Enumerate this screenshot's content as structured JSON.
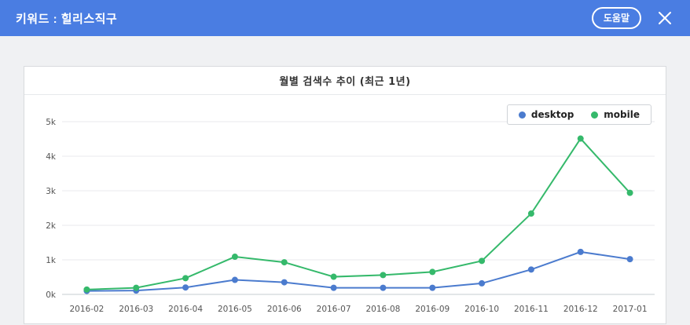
{
  "header": {
    "title": "키워드 : 힐리스직구",
    "help_label": "도움말"
  },
  "colors": {
    "header_background": "#4a7de2",
    "desktop_series": "#4b7bce",
    "mobile_series": "#35b96b"
  },
  "chart_data": {
    "type": "line",
    "title": "월별 검색수 추이 (최근 1년)",
    "categories": [
      "2016-02",
      "2016-03",
      "2016-04",
      "2016-05",
      "2016-06",
      "2016-07",
      "2016-08",
      "2016-09",
      "2016-10",
      "2016-11",
      "2016-12",
      "2017-01"
    ],
    "series": [
      {
        "name": "desktop",
        "color": "#4b7bce",
        "values": [
          100,
          110,
          200,
          420,
          350,
          190,
          190,
          190,
          320,
          720,
          1230,
          1020
        ]
      },
      {
        "name": "mobile",
        "color": "#35b96b",
        "values": [
          140,
          190,
          470,
          1090,
          930,
          510,
          560,
          650,
          970,
          2340,
          4510,
          2940
        ]
      }
    ],
    "ylim": [
      0,
      5000
    ],
    "yticks": [
      "0k",
      "1k",
      "2k",
      "3k",
      "4k",
      "5k"
    ],
    "grid": true,
    "legend_position": "top-right"
  }
}
